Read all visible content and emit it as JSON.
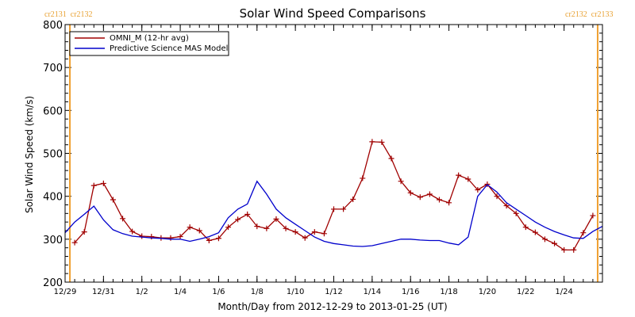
{
  "chart_data": {
    "type": "line",
    "title": "Solar Wind Speed Comparisons",
    "xlabel": "Month/Day from 2012-12-29 to 2013-01-25 (UT)",
    "ylabel": "Solar Wind Speed (km/s)",
    "xlim": [
      "2012-12-29T00:00",
      "2013-01-26T00:00"
    ],
    "ylim": [
      200,
      800
    ],
    "y_ticks": [
      200,
      300,
      400,
      500,
      600,
      700,
      800
    ],
    "x_ticks": [
      {
        "date": "2012-12-29",
        "label": "12/29"
      },
      {
        "date": "2012-12-31",
        "label": "12/31"
      },
      {
        "date": "2013-01-02",
        "label": "1/2"
      },
      {
        "date": "2013-01-04",
        "label": "1/4"
      },
      {
        "date": "2013-01-06",
        "label": "1/6"
      },
      {
        "date": "2013-01-08",
        "label": "1/8"
      },
      {
        "date": "2013-01-10",
        "label": "1/10"
      },
      {
        "date": "2013-01-12",
        "label": "1/12"
      },
      {
        "date": "2013-01-14",
        "label": "1/14"
      },
      {
        "date": "2013-01-16",
        "label": "1/16"
      },
      {
        "date": "2013-01-18",
        "label": "1/18"
      },
      {
        "date": "2013-01-20",
        "label": "1/20"
      },
      {
        "date": "2013-01-22",
        "label": "1/22"
      },
      {
        "date": "2013-01-24",
        "label": "1/24"
      }
    ],
    "legend_position": "top-left",
    "carrington_markers": [
      {
        "date": "2012-12-29T06:00",
        "label_left": "cr2131",
        "label_right": "cr2132",
        "side": "left"
      },
      {
        "date": "2013-01-25T18:00",
        "label_left": "cr2132",
        "label_right": "cr2133",
        "side": "right"
      }
    ],
    "marker_color": "#f0a030",
    "series": [
      {
        "name": "OMNI_M (12-hr avg)",
        "color": "#a00000",
        "marker": "plus",
        "x": [
          "2012-12-29T12:00",
          "2012-12-30T00:00",
          "2012-12-30T12:00",
          "2012-12-31T00:00",
          "2012-12-31T12:00",
          "2013-01-01T00:00",
          "2013-01-01T12:00",
          "2013-01-02T00:00",
          "2013-01-02T12:00",
          "2013-01-03T00:00",
          "2013-01-03T12:00",
          "2013-01-04T00:00",
          "2013-01-04T12:00",
          "2013-01-05T00:00",
          "2013-01-05T12:00",
          "2013-01-06T00:00",
          "2013-01-06T12:00",
          "2013-01-07T00:00",
          "2013-01-07T12:00",
          "2013-01-08T00:00",
          "2013-01-08T12:00",
          "2013-01-09T00:00",
          "2013-01-09T12:00",
          "2013-01-10T00:00",
          "2013-01-10T12:00",
          "2013-01-11T00:00",
          "2013-01-11T12:00",
          "2013-01-12T00:00",
          "2013-01-12T12:00",
          "2013-01-13T00:00",
          "2013-01-13T12:00",
          "2013-01-14T00:00",
          "2013-01-14T12:00",
          "2013-01-15T00:00",
          "2013-01-15T12:00",
          "2013-01-16T00:00",
          "2013-01-16T12:00",
          "2013-01-17T00:00",
          "2013-01-17T12:00",
          "2013-01-18T00:00",
          "2013-01-18T12:00",
          "2013-01-19T00:00",
          "2013-01-19T12:00",
          "2013-01-20T00:00",
          "2013-01-20T12:00",
          "2013-01-21T00:00",
          "2013-01-21T12:00",
          "2013-01-22T00:00",
          "2013-01-22T12:00",
          "2013-01-23T00:00",
          "2013-01-23T12:00",
          "2013-01-24T00:00",
          "2013-01-24T12:00",
          "2013-01-25T00:00",
          "2013-01-25T12:00"
        ],
        "y": [
          292,
          317,
          425,
          430,
          392,
          348,
          318,
          307,
          306,
          303,
          303,
          306,
          328,
          320,
          297,
          302,
          328,
          346,
          358,
          330,
          325,
          347,
          325,
          317,
          303,
          317,
          313,
          370,
          370,
          393,
          442,
          527,
          526,
          488,
          435,
          408,
          398,
          405,
          392,
          385,
          449,
          440,
          415,
          428,
          400,
          378,
          360,
          328,
          316,
          300,
          290,
          275,
          275,
          315,
          355
        ]
      },
      {
        "name": "Predictive Science MAS Model",
        "color": "#0000cc",
        "x": [
          "2012-12-29T00:00",
          "2012-12-29T12:00",
          "2012-12-30T00:00",
          "2012-12-30T12:00",
          "2012-12-31T00:00",
          "2012-12-31T12:00",
          "2013-01-01T00:00",
          "2013-01-01T12:00",
          "2013-01-02T00:00",
          "2013-01-02T12:00",
          "2013-01-03T00:00",
          "2013-01-03T12:00",
          "2013-01-04T00:00",
          "2013-01-04T12:00",
          "2013-01-05T00:00",
          "2013-01-05T12:00",
          "2013-01-06T00:00",
          "2013-01-06T12:00",
          "2013-01-07T00:00",
          "2013-01-07T12:00",
          "2013-01-08T00:00",
          "2013-01-08T12:00",
          "2013-01-09T00:00",
          "2013-01-09T12:00",
          "2013-01-10T00:00",
          "2013-01-10T12:00",
          "2013-01-11T00:00",
          "2013-01-11T12:00",
          "2013-01-12T00:00",
          "2013-01-12T12:00",
          "2013-01-13T00:00",
          "2013-01-13T12:00",
          "2013-01-14T00:00",
          "2013-01-14T12:00",
          "2013-01-15T00:00",
          "2013-01-15T12:00",
          "2013-01-16T00:00",
          "2013-01-16T12:00",
          "2013-01-17T00:00",
          "2013-01-17T12:00",
          "2013-01-18T00:00",
          "2013-01-18T12:00",
          "2013-01-19T00:00",
          "2013-01-19T12:00",
          "2013-01-20T00:00",
          "2013-01-20T12:00",
          "2013-01-21T00:00",
          "2013-01-21T12:00",
          "2013-01-22T00:00",
          "2013-01-22T12:00",
          "2013-01-23T00:00",
          "2013-01-23T12:00",
          "2013-01-24T00:00",
          "2013-01-24T12:00",
          "2013-01-25T00:00",
          "2013-01-25T12:00",
          "2013-01-26T00:00"
        ],
        "y": [
          315,
          340,
          358,
          377,
          345,
          322,
          313,
          307,
          305,
          303,
          302,
          300,
          300,
          295,
          300,
          306,
          315,
          350,
          370,
          382,
          435,
          405,
          370,
          350,
          335,
          320,
          305,
          295,
          290,
          287,
          284,
          283,
          285,
          290,
          295,
          300,
          300,
          298,
          297,
          297,
          291,
          287,
          305,
          400,
          427,
          410,
          385,
          370,
          355,
          340,
          328,
          318,
          310,
          303,
          302,
          318,
          330
        ]
      }
    ]
  }
}
